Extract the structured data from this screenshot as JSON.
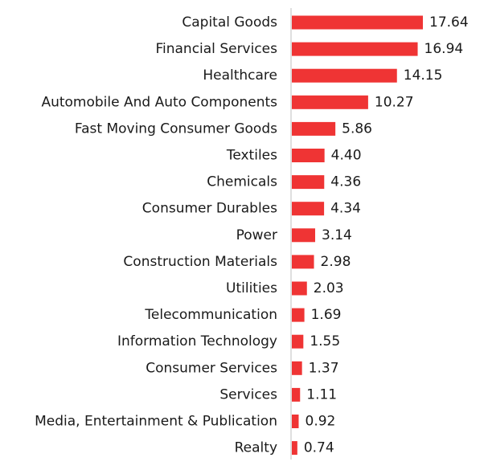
{
  "chart_data": {
    "type": "bar",
    "orientation": "horizontal",
    "title": "",
    "xlabel": "",
    "ylabel": "",
    "categories": [
      "Capital Goods",
      "Financial Services",
      "Healthcare",
      "Automobile And Auto Components",
      "Fast Moving Consumer Goods",
      "Textiles",
      "Chemicals",
      "Consumer Durables",
      "Power",
      "Construction Materials",
      "Utilities",
      "Telecommunication",
      "Information Technology",
      "Consumer Services",
      "Services",
      "Media, Entertainment & Publication",
      "Realty"
    ],
    "values": [
      17.64,
      16.94,
      14.15,
      10.27,
      5.86,
      4.4,
      4.36,
      4.34,
      3.14,
      2.98,
      2.03,
      1.69,
      1.55,
      1.37,
      1.11,
      0.92,
      0.74
    ],
    "value_labels": [
      "17.64",
      "16.94",
      "14.15",
      "10.27",
      "5.86",
      "4.40",
      "4.36",
      "4.34",
      "3.14",
      "2.98",
      "2.03",
      "1.69",
      "1.55",
      "1.37",
      "1.11",
      "0.92",
      "0.74"
    ],
    "xlim": [
      0,
      17.64
    ],
    "grid": false,
    "legend": "none",
    "colors": {
      "bar": "#ef3434",
      "axis": "#bfbfbf",
      "text": "#1a1a1a"
    }
  }
}
